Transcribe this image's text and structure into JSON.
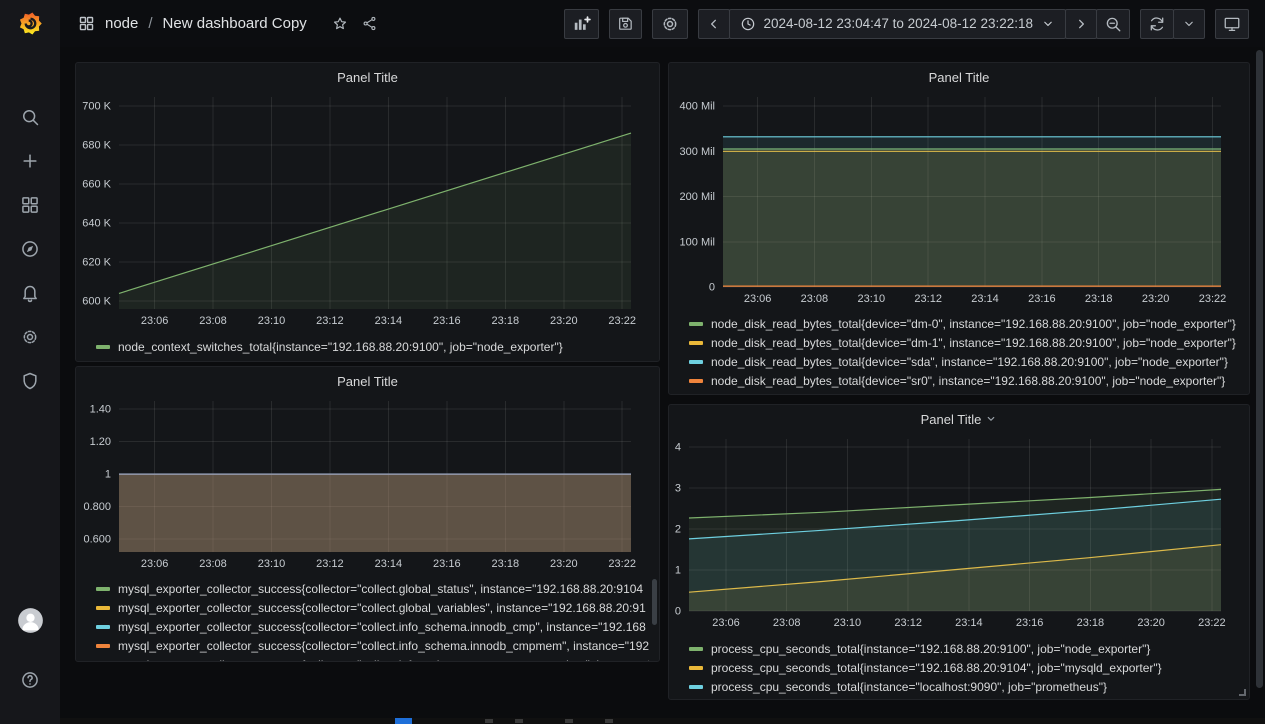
{
  "topnav": {
    "breadcrumb": {
      "folder": "node",
      "separator": "/",
      "title": "New dashboard Copy"
    },
    "title_icons": [
      "star-icon",
      "share-icon"
    ],
    "toolbar": {
      "panel_buttons": [
        "add-panel-icon",
        "save-dashboard-icon",
        "dashboard-settings-icon"
      ],
      "time_range": "2024-08-12 23:04:47 to 2024-08-12 23:22:18",
      "time_controls": [
        "time-shift-back-icon",
        "clock-icon",
        "chevron-down-icon",
        "time-shift-forward-icon",
        "zoom-out-icon"
      ],
      "refresh_controls": [
        "refresh-icon",
        "chevron-down-icon"
      ],
      "view_controls": [
        "monitor-icon"
      ]
    }
  },
  "sidebar": {
    "items": [
      {
        "icon": "search-icon"
      },
      {
        "icon": "plus-icon"
      },
      {
        "icon": "dashboards-grid-icon"
      },
      {
        "icon": "explore-compass-icon"
      },
      {
        "icon": "alerting-bell-icon"
      },
      {
        "icon": "configuration-gear-icon"
      },
      {
        "icon": "server-admin-shield-icon"
      }
    ],
    "bottom": [
      {
        "icon": "avatar"
      },
      {
        "icon": "help-icon"
      }
    ]
  },
  "colors": {
    "green": "#7EB26D",
    "yellow": "#EAB839",
    "cyan": "#6ED0E0",
    "orange": "#EF843C",
    "red": "#E24D42",
    "flat_line_blend": "#8b96ad"
  },
  "chart_data": [
    {
      "type": "area",
      "title": "Panel Title",
      "ylim": [
        596000,
        704500
      ],
      "grid": true,
      "legend_position": "bottom",
      "y_ticks": [
        {
          "label": "700 K",
          "v": 700000
        },
        {
          "label": "680 K",
          "v": 680000
        },
        {
          "label": "660 K",
          "v": 660000
        },
        {
          "label": "640 K",
          "v": 640000
        },
        {
          "label": "620 K",
          "v": 620000
        },
        {
          "label": "600 K",
          "v": 600000
        }
      ],
      "x_ticks": [
        {
          "label": "23:06",
          "f": 0.0695
        },
        {
          "label": "23:08",
          "f": 0.1836
        },
        {
          "label": "23:10",
          "f": 0.2978
        },
        {
          "label": "23:12",
          "f": 0.412
        },
        {
          "label": "23:14",
          "f": 0.5262
        },
        {
          "label": "23:16",
          "f": 0.6403
        },
        {
          "label": "23:18",
          "f": 0.7545
        },
        {
          "label": "23:20",
          "f": 0.8687
        },
        {
          "label": "23:22",
          "f": 0.9829
        }
      ],
      "series": [
        {
          "name": "node_context_switches_total{instance=\"192.168.88.20:9100\", job=\"node_exporter\"}",
          "color": "#7EB26D",
          "fill": 0.1,
          "width": 1.2,
          "points": [
            [
              0,
              604000
            ],
            [
              1,
              686000
            ]
          ]
        }
      ],
      "legend": [
        {
          "color": "#7EB26D",
          "label": "node_context_switches_total{instance=\"192.168.88.20:9100\", job=\"node_exporter\"}"
        }
      ]
    },
    {
      "type": "area",
      "title": "Panel Title",
      "ylim": [
        0,
        420000000
      ],
      "grid": true,
      "legend_position": "bottom",
      "y_ticks": [
        {
          "label": "400 Mil",
          "v": 400000000
        },
        {
          "label": "300 Mil",
          "v": 300000000
        },
        {
          "label": "200 Mil",
          "v": 200000000
        },
        {
          "label": "100 Mil",
          "v": 100000000
        },
        {
          "label": "0",
          "v": 0
        }
      ],
      "x_ticks": [
        {
          "label": "23:06",
          "f": 0.0695
        },
        {
          "label": "23:08",
          "f": 0.1836
        },
        {
          "label": "23:10",
          "f": 0.2978
        },
        {
          "label": "23:12",
          "f": 0.412
        },
        {
          "label": "23:14",
          "f": 0.5262
        },
        {
          "label": "23:16",
          "f": 0.6403
        },
        {
          "label": "23:18",
          "f": 0.7545
        },
        {
          "label": "23:20",
          "f": 0.8687
        },
        {
          "label": "23:22",
          "f": 0.9829
        }
      ],
      "series": [
        {
          "name": "node_disk_read_bytes_total{device=\"dm-0\", instance=\"192.168.88.20:9100\", job=\"node_exporter\"}",
          "color": "#7EB26D",
          "fill": 0.1,
          "width": 1.2,
          "points": [
            [
              0,
              305000000
            ],
            [
              1,
              305000000
            ]
          ]
        },
        {
          "name": "node_disk_read_bytes_total{device=\"dm-1\", instance=\"192.168.88.20:9100\", job=\"node_exporter\"}",
          "color": "#EAB839",
          "fill": 0.1,
          "width": 1.2,
          "points": [
            [
              0,
              300000000
            ],
            [
              1,
              300000000
            ]
          ]
        },
        {
          "name": "node_disk_read_bytes_total{device=\"sda\", instance=\"192.168.88.20:9100\", job=\"node_exporter\"}",
          "color": "#6ED0E0",
          "fill": 0.1,
          "width": 1.2,
          "points": [
            [
              0,
              332000000
            ],
            [
              1,
              332000000
            ]
          ]
        },
        {
          "name": "node_disk_read_bytes_total{device=\"sr0\", instance=\"192.168.88.20:9100\", job=\"node_exporter\"}",
          "color": "#EF843C",
          "fill": 0.1,
          "width": 1.2,
          "points": [
            [
              0,
              2000000
            ],
            [
              1,
              2000000
            ]
          ]
        }
      ],
      "legend": [
        {
          "color": "#7EB26D",
          "label": "node_disk_read_bytes_total{device=\"dm-0\", instance=\"192.168.88.20:9100\", job=\"node_exporter\"}"
        },
        {
          "color": "#EAB839",
          "label": "node_disk_read_bytes_total{device=\"dm-1\", instance=\"192.168.88.20:9100\", job=\"node_exporter\"}"
        },
        {
          "color": "#6ED0E0",
          "label": "node_disk_read_bytes_total{device=\"sda\", instance=\"192.168.88.20:9100\", job=\"node_exporter\"}"
        },
        {
          "color": "#EF843C",
          "label": "node_disk_read_bytes_total{device=\"sr0\", instance=\"192.168.88.20:9100\", job=\"node_exporter\"}"
        }
      ]
    },
    {
      "type": "area",
      "title": "Panel Title",
      "ylim": [
        0.52,
        1.45
      ],
      "grid": true,
      "legend_position": "bottom",
      "legend_scroll": true,
      "y_ticks": [
        {
          "label": "1.40",
          "v": 1.4
        },
        {
          "label": "1.20",
          "v": 1.2
        },
        {
          "label": "1",
          "v": 1
        },
        {
          "label": "0.800",
          "v": 0.8
        },
        {
          "label": "0.600",
          "v": 0.6
        }
      ],
      "x_ticks": [
        {
          "label": "23:06",
          "f": 0.0695
        },
        {
          "label": "23:08",
          "f": 0.1836
        },
        {
          "label": "23:10",
          "f": 0.2978
        },
        {
          "label": "23:12",
          "f": 0.412
        },
        {
          "label": "23:14",
          "f": 0.5262
        },
        {
          "label": "23:16",
          "f": 0.6403
        },
        {
          "label": "23:18",
          "f": 0.7545
        },
        {
          "label": "23:20",
          "f": 0.8687
        },
        {
          "label": "23:22",
          "f": 0.9829
        }
      ],
      "series": [
        {
          "name": "collect.global_status",
          "color": "#7EB26D",
          "fill": 0.1,
          "width": 1,
          "points": [
            [
              0,
              1
            ],
            [
              1,
              1
            ]
          ]
        },
        {
          "name": "collect.global_variables",
          "color": "#EAB839",
          "fill": 0.1,
          "width": 1,
          "points": [
            [
              0,
              1
            ],
            [
              1,
              1
            ]
          ]
        },
        {
          "name": "collect.info_schema.innodb_cmp",
          "color": "#6ED0E0",
          "fill": 0.1,
          "width": 1,
          "points": [
            [
              0,
              1
            ],
            [
              1,
              1
            ]
          ]
        },
        {
          "name": "collect.info_schema.innodb_cmpmem",
          "color": "#EF843C",
          "fill": 0.1,
          "width": 1,
          "points": [
            [
              0,
              1
            ],
            [
              1,
              1
            ]
          ]
        },
        {
          "name": "collect.info_schema.query_response_time",
          "color": "#E24D42",
          "fill": 0.1,
          "width": 1,
          "points": [
            [
              0,
              1
            ],
            [
              1,
              1
            ]
          ]
        },
        {
          "name": "",
          "color": "#8b96ad",
          "fill": 0.12,
          "width": 1.5,
          "points": [
            [
              0,
              1
            ],
            [
              1,
              1
            ]
          ]
        }
      ],
      "legend": [
        {
          "color": "#7EB26D",
          "label": "mysql_exporter_collector_success{collector=\"collect.global_status\", instance=\"192.168.88.20:9104"
        },
        {
          "color": "#EAB839",
          "label": "mysql_exporter_collector_success{collector=\"collect.global_variables\", instance=\"192.168.88.20:91"
        },
        {
          "color": "#6ED0E0",
          "label": "mysql_exporter_collector_success{collector=\"collect.info_schema.innodb_cmp\", instance=\"192.168"
        },
        {
          "color": "#EF843C",
          "label": "mysql_exporter_collector_success{collector=\"collect.info_schema.innodb_cmpmem\", instance=\"192."
        },
        {
          "color": "#E24D42",
          "label": "mysql_exporter_collector_success{collector=\"collect.info_schema.query_response_time\", instance=\""
        }
      ]
    },
    {
      "type": "area",
      "title": "Panel Title",
      "has_menu_chevron": true,
      "ylim": [
        0,
        4.2
      ],
      "grid": true,
      "legend_position": "bottom",
      "has_resize_handle": true,
      "y_ticks": [
        {
          "label": "4",
          "v": 4
        },
        {
          "label": "3",
          "v": 3
        },
        {
          "label": "2",
          "v": 2
        },
        {
          "label": "1",
          "v": 1
        },
        {
          "label": "0",
          "v": 0
        }
      ],
      "x_ticks": [
        {
          "label": "23:06",
          "f": 0.0695
        },
        {
          "label": "23:08",
          "f": 0.1836
        },
        {
          "label": "23:10",
          "f": 0.2978
        },
        {
          "label": "23:12",
          "f": 0.412
        },
        {
          "label": "23:14",
          "f": 0.5262
        },
        {
          "label": "23:16",
          "f": 0.6403
        },
        {
          "label": "23:18",
          "f": 0.7545
        },
        {
          "label": "23:20",
          "f": 0.8687
        },
        {
          "label": "23:22",
          "f": 0.9829
        }
      ],
      "series": [
        {
          "name": "process_cpu_seconds_total{instance=\"192.168.88.20:9100\", job=\"node_exporter\"}",
          "color": "#7EB26D",
          "fill": 0.1,
          "width": 1.2,
          "points": [
            [
              0,
              2.27
            ],
            [
              0.25,
              2.41
            ],
            [
              0.5,
              2.59
            ],
            [
              0.75,
              2.77
            ],
            [
              1,
              2.97
            ]
          ]
        },
        {
          "name": "process_cpu_seconds_total{instance=\"192.168.88.20:9104\", job=\"mysqld_exporter\"}",
          "color": "#EAB839",
          "fill": 0.1,
          "width": 1.2,
          "points": [
            [
              0,
              0.46
            ],
            [
              0.25,
              0.72
            ],
            [
              0.5,
              1.01
            ],
            [
              0.75,
              1.3
            ],
            [
              1,
              1.62
            ]
          ]
        },
        {
          "name": "process_cpu_seconds_total{instance=\"localhost:9090\", job=\"prometheus\"}",
          "color": "#6ED0E0",
          "fill": 0.1,
          "width": 1.2,
          "points": [
            [
              0,
              1.76
            ],
            [
              0.25,
              1.97
            ],
            [
              0.5,
              2.2
            ],
            [
              0.75,
              2.45
            ],
            [
              1,
              2.73
            ]
          ]
        }
      ],
      "legend": [
        {
          "color": "#7EB26D",
          "label": "process_cpu_seconds_total{instance=\"192.168.88.20:9100\", job=\"node_exporter\"}"
        },
        {
          "color": "#EAB839",
          "label": "process_cpu_seconds_total{instance=\"192.168.88.20:9104\", job=\"mysqld_exporter\"}"
        },
        {
          "color": "#6ED0E0",
          "label": "process_cpu_seconds_total{instance=\"localhost:9090\", job=\"prometheus\"}"
        }
      ]
    }
  ]
}
